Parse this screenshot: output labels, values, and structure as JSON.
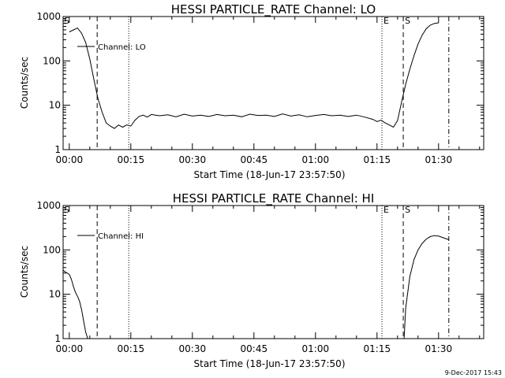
{
  "chart_data": [
    {
      "type": "line",
      "title": "HESSI PARTICLE_RATE Channel: LO",
      "xlabel": "Start Time (18-Jun-17 23:57:50)",
      "ylabel": "Counts/sec",
      "yscale": "log",
      "ylim": [
        1,
        1000
      ],
      "xlim_minutes": [
        -1.5,
        101
      ],
      "x_ticks": [
        {
          "min": 0,
          "label": "00:00"
        },
        {
          "min": 15,
          "label": "00:15"
        },
        {
          "min": 30,
          "label": "00:30"
        },
        {
          "min": 45,
          "label": "00:45"
        },
        {
          "min": 60,
          "label": "01:00"
        },
        {
          "min": 75,
          "label": "01:15"
        },
        {
          "min": 90,
          "label": "01:30"
        }
      ],
      "y_ticks": [
        {
          "value": 1,
          "label": "1"
        },
        {
          "value": 10,
          "label": "10"
        },
        {
          "value": 100,
          "label": "100"
        },
        {
          "value": 1000,
          "label": "1000"
        }
      ],
      "legend": {
        "entries": [
          "Channel: LO"
        ],
        "placement": "top-left"
      },
      "series": [
        {
          "name": "Channel: LO",
          "x": [
            0,
            1,
            2,
            3,
            4,
            5,
            6,
            7,
            8,
            9,
            10,
            11,
            12,
            13,
            14,
            15,
            16,
            17,
            18,
            19,
            20,
            22,
            24,
            26,
            28,
            30,
            32,
            34,
            36,
            38,
            40,
            42,
            44,
            46,
            48,
            50,
            52,
            54,
            56,
            58,
            60,
            62,
            64,
            66,
            68,
            70,
            72,
            74,
            75,
            76,
            77,
            78,
            79,
            80,
            81,
            82,
            83,
            84,
            85,
            86,
            87,
            88,
            89,
            90
          ],
          "y": [
            450,
            500,
            550,
            420,
            260,
            110,
            38,
            14,
            7,
            4,
            3.4,
            3,
            3.6,
            3.2,
            3.6,
            3.4,
            4.6,
            5.6,
            6,
            5.4,
            6.2,
            5.8,
            6.1,
            5.5,
            6.3,
            5.7,
            6,
            5.6,
            6.2,
            5.8,
            6,
            5.5,
            6.3,
            5.9,
            6,
            5.6,
            6.4,
            5.7,
            6.1,
            5.5,
            5.9,
            6.2,
            5.8,
            6,
            5.6,
            6,
            5.4,
            4.8,
            4.3,
            4.6,
            4,
            3.6,
            3.2,
            4.5,
            12,
            30,
            65,
            130,
            240,
            380,
            530,
            640,
            700,
            720
          ]
        }
      ],
      "markers": [
        {
          "x": 6.8,
          "style": "dashed",
          "letter": ""
        },
        {
          "x": 14.5,
          "style": "dotted",
          "letter": ""
        },
        {
          "x": 76.2,
          "style": "dotted",
          "letter": "E"
        },
        {
          "x": 81.4,
          "style": "dashed",
          "letter": "S"
        },
        {
          "x": 92.5,
          "style": "dashdot",
          "letter": ""
        }
      ],
      "corner_label": "S"
    },
    {
      "type": "line",
      "title": "HESSI PARTICLE_RATE Channel: HI",
      "xlabel": "Start Time (18-Jun-17 23:57:50)",
      "ylabel": "Counts/sec",
      "yscale": "log",
      "ylim": [
        1,
        1000
      ],
      "xlim_minutes": [
        -1.5,
        101
      ],
      "x_ticks": [
        {
          "min": 0,
          "label": "00:00"
        },
        {
          "min": 15,
          "label": "00:15"
        },
        {
          "min": 30,
          "label": "00:30"
        },
        {
          "min": 45,
          "label": "00:45"
        },
        {
          "min": 60,
          "label": "01:00"
        },
        {
          "min": 75,
          "label": "01:15"
        },
        {
          "min": 90,
          "label": "01:30"
        }
      ],
      "y_ticks": [
        {
          "value": 1,
          "label": "1"
        },
        {
          "value": 10,
          "label": "10"
        },
        {
          "value": 100,
          "label": "100"
        },
        {
          "value": 1000,
          "label": "1000"
        }
      ],
      "legend": {
        "entries": [
          "Channel: HI"
        ],
        "placement": "top-left"
      },
      "series": [
        {
          "name": "Channel: HI",
          "x": [
            -1.5,
            -1,
            0,
            0.5,
            1,
            1.5,
            2,
            2.5,
            3,
            3.5,
            4,
            4.5,
            81.6,
            82,
            83,
            84,
            85,
            86,
            87,
            88,
            89,
            90,
            91,
            92.5
          ],
          "y": [
            35,
            32,
            28,
            22,
            15,
            11,
            9,
            7,
            4.5,
            2.5,
            1.4,
            1,
            1,
            5,
            25,
            60,
            100,
            140,
            175,
            200,
            210,
            205,
            190,
            170
          ]
        }
      ],
      "markers": [
        {
          "x": 6.8,
          "style": "dashed",
          "letter": ""
        },
        {
          "x": 14.5,
          "style": "dotted",
          "letter": ""
        },
        {
          "x": 76.2,
          "style": "dotted",
          "letter": "E"
        },
        {
          "x": 81.4,
          "style": "dashed",
          "letter": "S"
        },
        {
          "x": 92.5,
          "style": "dashdot",
          "letter": ""
        }
      ],
      "corner_label": "S"
    }
  ],
  "footer": {
    "timestamp": "9-Dec-2017 15:43"
  }
}
